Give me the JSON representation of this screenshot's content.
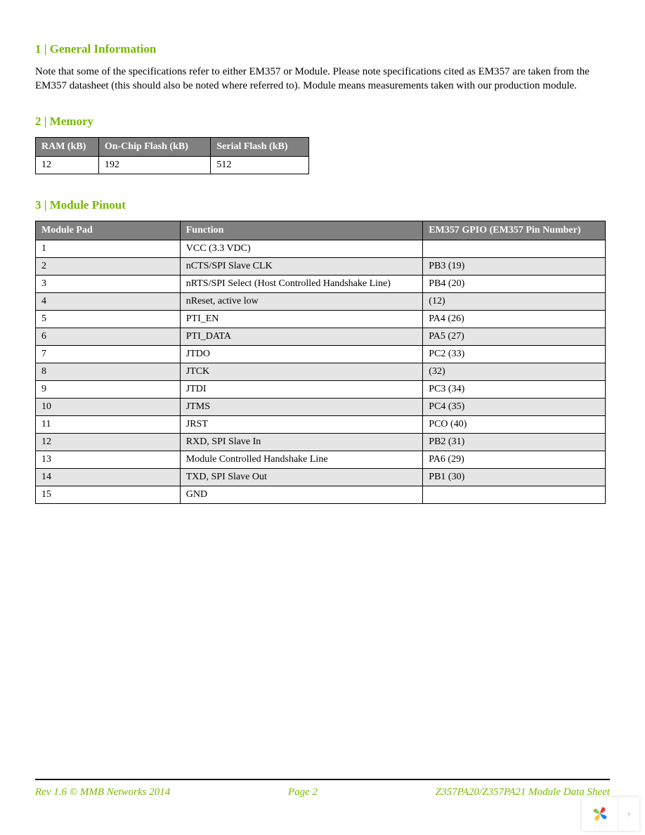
{
  "colors": {
    "accent_green": "#76b900",
    "table_header_bg": "#808080",
    "table_header_text": "#ffffff",
    "row_shade": "#e5e5e5",
    "text": "#000000",
    "background": "#ffffff",
    "widget_arrow": "#bbbbbb"
  },
  "typography": {
    "heading_fontsize": 17,
    "body_fontsize": 15,
    "table_fontsize": 14,
    "footer_fontsize": 15,
    "font_family": "Times New Roman"
  },
  "sections": {
    "s1": {
      "heading": "1 | General Information",
      "paragraph": "Note that some of the specifications refer to either EM357 or Module.  Please note specifications cited as EM357 are taken from the EM357 datasheet (this should also be noted where referred to).  Module means measurements taken with our production module."
    },
    "s2": {
      "heading": "2 | Memory",
      "table": {
        "columns": [
          "RAM (kB)",
          "On-Chip Flash (kB)",
          "Serial Flash (kB)"
        ],
        "rows": [
          [
            "12",
            "192",
            "512"
          ]
        ]
      }
    },
    "s3": {
      "heading": "3 | Module Pinout",
      "table": {
        "columns": [
          "Module Pad",
          "Function",
          "EM357 GPIO (EM357 Pin Number)"
        ],
        "rows": [
          {
            "cells": [
              "1",
              "VCC (3.3 VDC)",
              ""
            ],
            "shaded": false
          },
          {
            "cells": [
              "2",
              "nCTS/SPI Slave CLK",
              "PB3 (19)"
            ],
            "shaded": true
          },
          {
            "cells": [
              "3",
              "nRTS/SPI Select (Host Controlled Handshake Line)",
              "PB4 (20)"
            ],
            "shaded": false
          },
          {
            "cells": [
              "4",
              "nReset, active low",
              "(12)"
            ],
            "shaded": true
          },
          {
            "cells": [
              "5",
              "PTI_EN",
              "PA4 (26)"
            ],
            "shaded": false
          },
          {
            "cells": [
              "6",
              "PTI_DATA",
              "PA5 (27)"
            ],
            "shaded": true
          },
          {
            "cells": [
              "7",
              "JTDO",
              "PC2 (33)"
            ],
            "shaded": false
          },
          {
            "cells": [
              "8",
              "JTCK",
              "(32)"
            ],
            "shaded": true
          },
          {
            "cells": [
              "9",
              "JTDI",
              "PC3 (34)"
            ],
            "shaded": false
          },
          {
            "cells": [
              "10",
              "JTMS",
              "PC4 (35)"
            ],
            "shaded": true
          },
          {
            "cells": [
              "11",
              "JRST",
              "PCO (40)"
            ],
            "shaded": false
          },
          {
            "cells": [
              "12",
              "RXD, SPI Slave In",
              "PB2 (31)"
            ],
            "shaded": true
          },
          {
            "cells": [
              "13",
              "Module Controlled Handshake Line",
              "PA6 (29)"
            ],
            "shaded": false
          },
          {
            "cells": [
              "14",
              "TXD, SPI Slave Out",
              "PB1 (30)"
            ],
            "shaded": true
          },
          {
            "cells": [
              "15",
              "GND",
              ""
            ],
            "shaded": false
          }
        ]
      }
    }
  },
  "footer": {
    "left": "Rev 1.6 © MMB Networks 2014",
    "center": "Page 2",
    "right": "Z357PA20/Z357PA21 Module Data Sheet"
  },
  "widget": {
    "logo_colors": [
      "#8bc34a",
      "#e53935",
      "#fbc02d",
      "#1e88e5"
    ],
    "arrow": "›"
  }
}
